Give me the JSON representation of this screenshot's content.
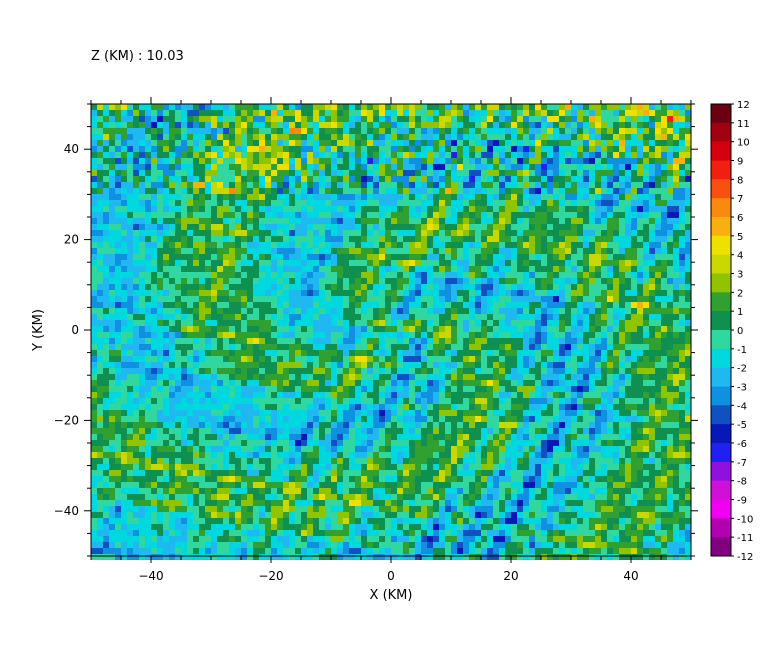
{
  "title": "Z (KM) : 10.03",
  "chart_data": {
    "type": "heatmap",
    "title": "Z (KM) : 10.03",
    "xlabel": "X (KM)",
    "ylabel": "Y (KM)",
    "xlim": [
      -50,
      50
    ],
    "ylim": [
      -50,
      50
    ],
    "xticks": [
      -40,
      -20,
      0,
      20,
      40
    ],
    "yticks": [
      -40,
      -20,
      0,
      20,
      40
    ],
    "grid": false,
    "colorbar": {
      "levels": [
        12,
        11,
        10,
        9,
        8,
        7,
        6,
        5,
        4,
        3,
        2,
        1,
        0,
        -1,
        -2,
        -3,
        -4,
        -5,
        -6,
        -7,
        -8,
        -9,
        -10,
        -11,
        -12
      ],
      "colors": [
        "#6b0010",
        "#a00010",
        "#d40010",
        "#f02010",
        "#f85010",
        "#f88a10",
        "#f8b010",
        "#f0e000",
        "#c8d800",
        "#90c400",
        "#30a030",
        "#109050",
        "#30d8a0",
        "#00d8e0",
        "#20b8f0",
        "#1090e0",
        "#1050c0",
        "#0818b8",
        "#2020f0",
        "#9010e0",
        "#d010d8",
        "#f000f0",
        "#b000b0",
        "#800080",
        "#400040"
      ]
    },
    "field_description": "dominant values between -2 and 2, scattered extremes up to ±12 in spiral bands"
  }
}
